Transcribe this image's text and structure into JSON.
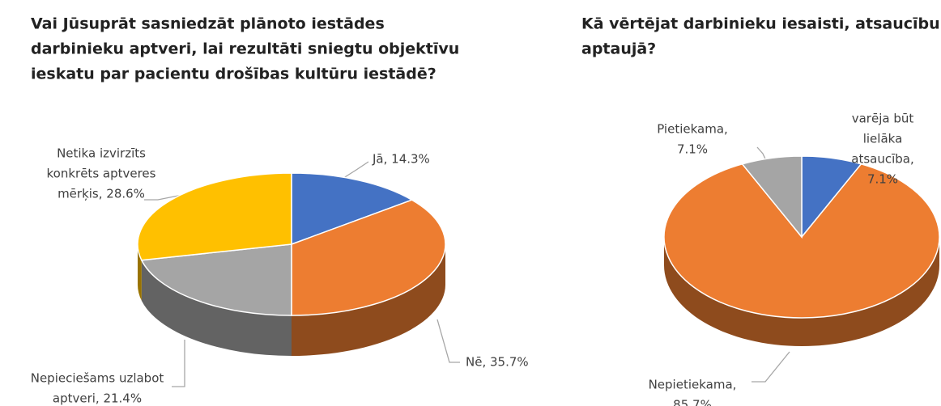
{
  "chart_data": [
    {
      "type": "pie3d",
      "title": [
        "Vai Jūsuprāt sasniedzāt plānoto iestādes",
        "darbinieku aptveri, lai rezultāti sniegtu objektīvu",
        "ieskatu par pacientu drošības kultūru iestādē?"
      ],
      "values": [
        14.3,
        35.7,
        21.4,
        28.6
      ],
      "value_labels": [
        [
          "Jā, 14.3%"
        ],
        [
          "Nē, 35.7%"
        ],
        [
          "Nepieciešams uzlabot",
          "aptveri, 21.4%"
        ],
        [
          "Netika izvirzīts",
          "konkrēts aptveres",
          "mērķis, 28.6%"
        ]
      ],
      "colors": [
        "#4472c4",
        "#ed7d31",
        "#a5a5a5",
        "#ffc000"
      ]
    },
    {
      "type": "pie3d",
      "title": [
        "Kā vērtējat darbinieku iesaisti, atsaucību",
        "aptaujā?"
      ],
      "values": [
        7.1,
        85.7,
        7.1
      ],
      "value_labels": [
        [
          "varēja būt",
          "lielāka",
          "atsaucība,",
          "7.1%"
        ],
        [
          "Nepietiekama,",
          "85.7%"
        ],
        [
          "Pietiekama,",
          "7.1%"
        ]
      ],
      "colors": [
        "#4472c4",
        "#ed7d31",
        "#a5a5a5"
      ]
    }
  ]
}
